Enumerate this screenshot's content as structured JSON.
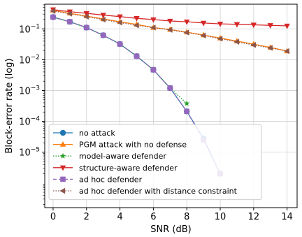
{
  "chart_data": {
    "type": "line",
    "xlabel": "SNR (dB)",
    "ylabel": "Block-error rate (log)",
    "xlim": [
      -0.5,
      14.6
    ],
    "ylim_log10": [
      -6.8,
      -0.2
    ],
    "yscale": "log",
    "grid": true,
    "legend_position": "lower-left",
    "x_ticks": [
      0,
      2,
      4,
      6,
      8,
      10,
      12,
      14
    ],
    "x_tick_labels": [
      "0",
      "2",
      "4",
      "6",
      "8",
      "10",
      "12",
      "14"
    ],
    "y_ticks_log10": [
      -5,
      -4,
      -3,
      -2,
      -1
    ],
    "y_tick_labels": [
      {
        "base": "10",
        "exp": "−5"
      },
      {
        "base": "10",
        "exp": "−4"
      },
      {
        "base": "10",
        "exp": "−3"
      },
      {
        "base": "10",
        "exp": "−2"
      },
      {
        "base": "10",
        "exp": "−1"
      }
    ],
    "series": [
      {
        "name": "no attack",
        "color": "#1f77b4",
        "marker": "circle",
        "dash": "solid",
        "x": [
          0,
          1,
          2,
          3,
          4,
          5,
          6,
          7,
          8,
          9,
          10
        ],
        "y": [
          0.24,
          0.17,
          0.11,
          0.062,
          0.032,
          0.013,
          0.0047,
          0.0012,
          0.00021,
          2.8e-05,
          2e-06
        ]
      },
      {
        "name": "PGM attack with no defense",
        "color": "#ff7f0e",
        "marker": "triangle-up",
        "dash": "solid",
        "x": [
          0,
          1,
          2,
          3,
          4,
          5,
          6,
          7,
          8,
          9,
          10,
          11,
          12,
          13,
          14
        ],
        "y": [
          0.4,
          0.32,
          0.26,
          0.21,
          0.17,
          0.14,
          0.11,
          0.095,
          0.078,
          0.063,
          0.05,
          0.04,
          0.032,
          0.025,
          0.019
        ]
      },
      {
        "name": "model-aware defender",
        "color": "#2ca02c",
        "marker": "star",
        "dash": "dotted",
        "x": [
          0,
          1,
          2,
          3,
          4,
          5,
          6,
          7,
          8
        ],
        "y": [
          0.24,
          0.17,
          0.11,
          0.062,
          0.032,
          0.013,
          0.0047,
          0.0012,
          0.00038
        ]
      },
      {
        "name": "structure-aware defender",
        "color": "#d62728",
        "marker": "triangle-down",
        "dash": "solid",
        "x": [
          0,
          1,
          2,
          3,
          4,
          5,
          6,
          7,
          8,
          9,
          10,
          11,
          12,
          13,
          14
        ],
        "y": [
          0.42,
          0.36,
          0.32,
          0.28,
          0.25,
          0.22,
          0.2,
          0.18,
          0.17,
          0.155,
          0.145,
          0.14,
          0.135,
          0.13,
          0.125
        ]
      },
      {
        "name": "ad hoc defender",
        "color": "#9467bd",
        "marker": "square",
        "dash": "dashed",
        "x": [
          0,
          1,
          2,
          3,
          4,
          5,
          6,
          7,
          8,
          9,
          10
        ],
        "y": [
          0.24,
          0.17,
          0.11,
          0.062,
          0.032,
          0.013,
          0.0047,
          0.0012,
          0.00021,
          2.5e-05,
          2e-06
        ]
      },
      {
        "name": "ad hoc defender with distance constraint",
        "color": "#8c564b",
        "marker": "triangle-left",
        "dash": "dotted",
        "x": [
          0,
          1,
          2,
          3,
          4,
          5,
          6,
          7,
          8,
          9,
          10,
          11,
          12,
          13,
          14
        ],
        "y": [
          0.38,
          0.31,
          0.25,
          0.2,
          0.16,
          0.13,
          0.11,
          0.093,
          0.076,
          0.061,
          0.048,
          0.038,
          0.03,
          0.024,
          0.019
        ]
      }
    ]
  }
}
